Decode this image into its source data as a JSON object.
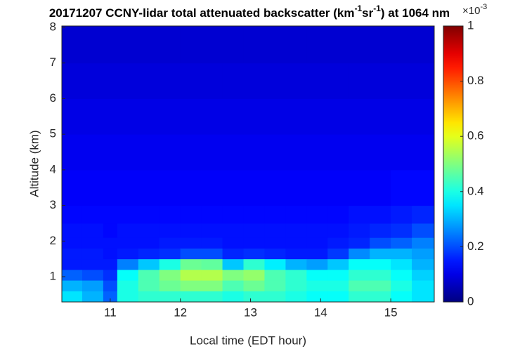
{
  "chart_data": {
    "type": "heatmap",
    "title_parts": [
      {
        "text": "20171207 CCNY-lidar total attenuated backscatter (km",
        "sup": false
      },
      {
        "text": "-1",
        "sup": true
      },
      {
        "text": "sr",
        "sup": false
      },
      {
        "text": "-1",
        "sup": true
      },
      {
        "text": ") at 1064 nm",
        "sup": false
      }
    ],
    "xlabel": "Local time (EDT hour)",
    "ylabel": "Altitude (km)",
    "xlim": [
      10.31,
      15.62
    ],
    "xticks": [
      11,
      12,
      13,
      14,
      15
    ],
    "ylim": [
      0.29,
      8.04
    ],
    "yticks": [
      1,
      2,
      3,
      4,
      5,
      6,
      7,
      8
    ],
    "colormap": "jet",
    "clim": [
      0,
      1
    ],
    "cticks": [
      0,
      0.2,
      0.4,
      0.6,
      0.8,
      1
    ],
    "colorbar_exponent": {
      "base": "×10",
      "exp": "-3"
    },
    "x_edges": [
      10.31,
      10.6,
      10.9,
      11.1,
      11.4,
      11.7,
      12.0,
      12.3,
      12.6,
      12.9,
      13.2,
      13.5,
      13.8,
      14.1,
      14.4,
      14.7,
      15.0,
      15.3,
      15.62
    ],
    "y_edges": [
      0.29,
      0.6,
      0.9,
      1.2,
      1.5,
      1.8,
      2.1,
      2.5,
      3,
      4,
      5,
      6,
      7,
      8.04
    ],
    "z": [
      [
        0.35,
        0.3,
        0.22,
        0.15,
        0.15,
        0.14,
        0.14,
        0.13,
        0.12,
        0.11,
        0.1,
        0.09,
        0.08
      ],
      [
        0.3,
        0.28,
        0.2,
        0.15,
        0.15,
        0.14,
        0.14,
        0.13,
        0.12,
        0.11,
        0.1,
        0.09,
        0.08
      ],
      [
        0.22,
        0.2,
        0.17,
        0.15,
        0.14,
        0.14,
        0.13,
        0.13,
        0.12,
        0.11,
        0.1,
        0.09,
        0.08
      ],
      [
        0.4,
        0.4,
        0.38,
        0.25,
        0.15,
        0.14,
        0.14,
        0.13,
        0.12,
        0.11,
        0.1,
        0.09,
        0.08
      ],
      [
        0.42,
        0.45,
        0.45,
        0.32,
        0.16,
        0.14,
        0.14,
        0.13,
        0.12,
        0.11,
        0.1,
        0.09,
        0.08
      ],
      [
        0.42,
        0.48,
        0.5,
        0.4,
        0.17,
        0.15,
        0.14,
        0.13,
        0.12,
        0.11,
        0.1,
        0.09,
        0.08
      ],
      [
        0.42,
        0.5,
        0.55,
        0.48,
        0.2,
        0.15,
        0.14,
        0.13,
        0.12,
        0.11,
        0.1,
        0.09,
        0.08
      ],
      [
        0.42,
        0.5,
        0.55,
        0.47,
        0.2,
        0.15,
        0.14,
        0.13,
        0.12,
        0.11,
        0.1,
        0.09,
        0.08
      ],
      [
        0.4,
        0.45,
        0.5,
        0.32,
        0.16,
        0.14,
        0.14,
        0.13,
        0.12,
        0.11,
        0.1,
        0.09,
        0.08
      ],
      [
        0.42,
        0.48,
        0.52,
        0.42,
        0.17,
        0.14,
        0.14,
        0.13,
        0.12,
        0.11,
        0.1,
        0.09,
        0.08
      ],
      [
        0.42,
        0.45,
        0.45,
        0.36,
        0.16,
        0.14,
        0.14,
        0.13,
        0.12,
        0.11,
        0.1,
        0.09,
        0.08
      ],
      [
        0.4,
        0.42,
        0.42,
        0.3,
        0.15,
        0.14,
        0.14,
        0.13,
        0.12,
        0.11,
        0.1,
        0.09,
        0.08
      ],
      [
        0.38,
        0.4,
        0.38,
        0.28,
        0.15,
        0.14,
        0.14,
        0.13,
        0.12,
        0.11,
        0.1,
        0.09,
        0.08
      ],
      [
        0.38,
        0.4,
        0.38,
        0.32,
        0.18,
        0.15,
        0.14,
        0.13,
        0.12,
        0.11,
        0.1,
        0.09,
        0.08
      ],
      [
        0.42,
        0.45,
        0.42,
        0.38,
        0.26,
        0.16,
        0.15,
        0.14,
        0.12,
        0.11,
        0.1,
        0.09,
        0.08
      ],
      [
        0.42,
        0.45,
        0.42,
        0.38,
        0.3,
        0.2,
        0.16,
        0.14,
        0.12,
        0.11,
        0.1,
        0.09,
        0.08
      ],
      [
        0.38,
        0.4,
        0.38,
        0.35,
        0.3,
        0.22,
        0.17,
        0.15,
        0.13,
        0.11,
        0.1,
        0.09,
        0.08
      ],
      [
        0.35,
        0.35,
        0.33,
        0.3,
        0.28,
        0.25,
        0.2,
        0.16,
        0.13,
        0.11,
        0.1,
        0.09,
        0.08
      ]
    ]
  }
}
